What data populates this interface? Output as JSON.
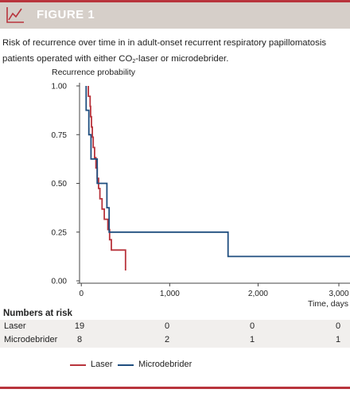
{
  "figure": {
    "label": "FIGURE 1",
    "caption_part1": "Risk of recurrence over time in in adult-onset recurrent respiratory papillomatosis patients operated with either CO",
    "caption_sub": "2",
    "caption_part2": "-laser or microdebrider.",
    "accent_color": "#b8343c",
    "banner_color": "#d6cfc9",
    "icon": "line-chart-icon"
  },
  "chart_data": {
    "type": "line",
    "subtype": "kaplan-meier step",
    "ylabel": "Recurrence probability",
    "xlabel": "Time, days",
    "xlim": [
      -20,
      3040
    ],
    "ylim": [
      0,
      1
    ],
    "xticks": [
      0,
      1000,
      2000,
      3000
    ],
    "xtick_labels": [
      "0",
      "1,000",
      "2,000",
      "3,000"
    ],
    "yticks": [
      0,
      0.25,
      0.5,
      0.75,
      1.0
    ],
    "ytick_labels": [
      "0.00",
      "0.25",
      "0.50",
      "0.75",
      "1.00"
    ],
    "grid": false,
    "legend_position": "bottom",
    "series": [
      {
        "name": "Laser",
        "color": "#b8343c",
        "x": [
          80,
          80,
          100,
          105,
          115,
          125,
          135,
          150,
          165,
          180,
          195,
          210,
          235,
          260,
          300,
          320,
          340,
          500
        ],
        "y": [
          1.0,
          0.947,
          0.895,
          0.842,
          0.789,
          0.737,
          0.684,
          0.632,
          0.579,
          0.526,
          0.474,
          0.421,
          0.368,
          0.316,
          0.263,
          0.211,
          0.158,
          0.053
        ]
      },
      {
        "name": "Microdebrider",
        "color": "#1f4e7f",
        "x": [
          55,
          55,
          85,
          110,
          180,
          290,
          315,
          1660,
          3040
        ],
        "y": [
          1.0,
          0.875,
          0.75,
          0.625,
          0.5,
          0.375,
          0.25,
          0.125,
          0.125
        ]
      }
    ]
  },
  "risk_table": {
    "title": "Numbers at risk",
    "times": [
      0,
      1000,
      2000,
      3000
    ],
    "rows": [
      {
        "label": "Laser",
        "values": [
          "19",
          "0",
          "0",
          "0"
        ]
      },
      {
        "label": "Microdebrider",
        "values": [
          "8",
          "2",
          "1",
          "1"
        ]
      }
    ]
  }
}
